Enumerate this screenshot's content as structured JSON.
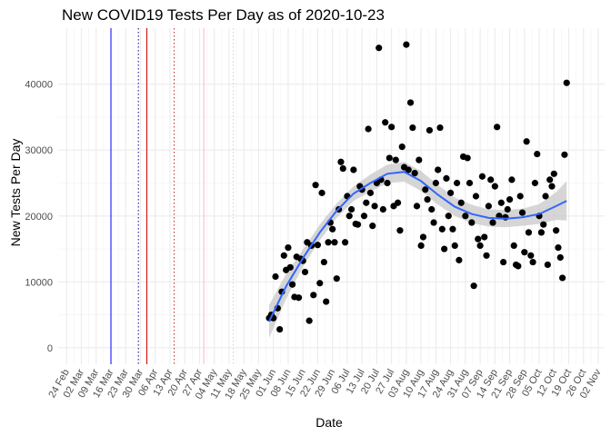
{
  "chart_data": {
    "type": "scatter",
    "title": "New COVID19 Tests Per Day as of 2020-10-23",
    "xlabel": "Date",
    "ylabel": "New Tests Per Day",
    "x_axis_type": "date",
    "xlim": [
      "2020-02-20",
      "2020-11-05"
    ],
    "ylim": [
      -2500,
      48500
    ],
    "y_ticks": [
      0,
      10000,
      20000,
      30000,
      40000
    ],
    "y_tick_labels": [
      "0",
      "10000",
      "20000",
      "30000",
      "40000"
    ],
    "x_ticks": [
      "2020-02-24",
      "2020-03-02",
      "2020-03-09",
      "2020-03-16",
      "2020-03-23",
      "2020-03-30",
      "2020-04-06",
      "2020-04-13",
      "2020-04-20",
      "2020-04-27",
      "2020-05-04",
      "2020-05-11",
      "2020-05-18",
      "2020-05-25",
      "2020-06-01",
      "2020-06-08",
      "2020-06-15",
      "2020-06-22",
      "2020-06-29",
      "2020-07-06",
      "2020-07-13",
      "2020-07-20",
      "2020-07-27",
      "2020-08-03",
      "2020-08-10",
      "2020-08-17",
      "2020-08-24",
      "2020-08-31",
      "2020-09-07",
      "2020-09-14",
      "2020-09-21",
      "2020-09-28",
      "2020-10-05",
      "2020-10-12",
      "2020-10-19",
      "2020-10-26",
      "2020-11-02"
    ],
    "x_tick_labels": [
      "24 Feb",
      "02 Mar",
      "09 Mar",
      "16 Mar",
      "23 Mar",
      "30 Mar",
      "06 Apr",
      "13 Apr",
      "20 Apr",
      "27 Apr",
      "04 May",
      "11 May",
      "18 May",
      "25 May",
      "01 Jun",
      "08 Jun",
      "15 Jun",
      "22 Jun",
      "29 Jun",
      "06 Jul",
      "13 Jul",
      "20 Jul",
      "27 Jul",
      "03 Aug",
      "10 Aug",
      "17 Aug",
      "24 Aug",
      "31 Aug",
      "07 Sep",
      "14 Sep",
      "21 Sep",
      "28 Sep",
      "05 Oct",
      "12 Oct",
      "19 Oct",
      "26 Oct",
      "02 Nov"
    ],
    "grid": true,
    "legend": "none",
    "vlines": [
      {
        "date": "2020-03-16",
        "color": "#0000ff",
        "style": "solid"
      },
      {
        "date": "2020-03-29",
        "color": "#00008b",
        "style": "dotted"
      },
      {
        "date": "2020-04-02",
        "color": "#cc0000",
        "style": "solid"
      },
      {
        "date": "2020-04-15",
        "color": "#b22222",
        "style": "dotted"
      },
      {
        "date": "2020-04-29",
        "color": "#ffb6c1",
        "style": "solid"
      },
      {
        "date": "2020-05-13",
        "color": "#ffb6c1",
        "style": "dotted"
      }
    ],
    "points": [
      {
        "x": "2020-05-30",
        "y": 4500
      },
      {
        "x": "2020-05-31",
        "y": 5000
      },
      {
        "x": "2020-06-01",
        "y": 4500
      },
      {
        "x": "2020-06-02",
        "y": 10800
      },
      {
        "x": "2020-06-03",
        "y": 6000
      },
      {
        "x": "2020-06-04",
        "y": 2800
      },
      {
        "x": "2020-06-05",
        "y": 8500
      },
      {
        "x": "2020-06-06",
        "y": 14000
      },
      {
        "x": "2020-06-07",
        "y": 11800
      },
      {
        "x": "2020-06-08",
        "y": 15200
      },
      {
        "x": "2020-06-09",
        "y": 12200
      },
      {
        "x": "2020-06-10",
        "y": 9600
      },
      {
        "x": "2020-06-11",
        "y": 7700
      },
      {
        "x": "2020-06-12",
        "y": 13800
      },
      {
        "x": "2020-06-13",
        "y": 7600
      },
      {
        "x": "2020-06-14",
        "y": 13500
      },
      {
        "x": "2020-06-15",
        "y": 13200
      },
      {
        "x": "2020-06-16",
        "y": 11500
      },
      {
        "x": "2020-06-17",
        "y": 16000
      },
      {
        "x": "2020-06-18",
        "y": 4100
      },
      {
        "x": "2020-06-19",
        "y": 15500
      },
      {
        "x": "2020-06-20",
        "y": 8000
      },
      {
        "x": "2020-06-21",
        "y": 24700
      },
      {
        "x": "2020-06-22",
        "y": 15600
      },
      {
        "x": "2020-06-23",
        "y": 9800
      },
      {
        "x": "2020-06-24",
        "y": 23500
      },
      {
        "x": "2020-06-25",
        "y": 13000
      },
      {
        "x": "2020-06-26",
        "y": 7000
      },
      {
        "x": "2020-06-27",
        "y": 16000
      },
      {
        "x": "2020-06-28",
        "y": 19000
      },
      {
        "x": "2020-06-29",
        "y": 18000
      },
      {
        "x": "2020-06-30",
        "y": 16000
      },
      {
        "x": "2020-07-01",
        "y": 10500
      },
      {
        "x": "2020-07-02",
        "y": 21000
      },
      {
        "x": "2020-07-03",
        "y": 28200
      },
      {
        "x": "2020-07-04",
        "y": 27200
      },
      {
        "x": "2020-07-05",
        "y": 16000
      },
      {
        "x": "2020-07-06",
        "y": 23000
      },
      {
        "x": "2020-07-07",
        "y": 20000
      },
      {
        "x": "2020-07-08",
        "y": 21000
      },
      {
        "x": "2020-07-09",
        "y": 27000
      },
      {
        "x": "2020-07-10",
        "y": 18800
      },
      {
        "x": "2020-07-11",
        "y": 18700
      },
      {
        "x": "2020-07-12",
        "y": 24500
      },
      {
        "x": "2020-07-13",
        "y": 24000
      },
      {
        "x": "2020-07-14",
        "y": 20000
      },
      {
        "x": "2020-07-15",
        "y": 22000
      },
      {
        "x": "2020-07-16",
        "y": 33200
      },
      {
        "x": "2020-07-17",
        "y": 23500
      },
      {
        "x": "2020-07-18",
        "y": 18500
      },
      {
        "x": "2020-07-19",
        "y": 21500
      },
      {
        "x": "2020-07-20",
        "y": 25000
      },
      {
        "x": "2020-07-21",
        "y": 45500
      },
      {
        "x": "2020-07-22",
        "y": 25500
      },
      {
        "x": "2020-07-23",
        "y": 21000
      },
      {
        "x": "2020-07-24",
        "y": 34200
      },
      {
        "x": "2020-07-25",
        "y": 25000
      },
      {
        "x": "2020-07-26",
        "y": 28800
      },
      {
        "x": "2020-07-27",
        "y": 33500
      },
      {
        "x": "2020-07-28",
        "y": 21500
      },
      {
        "x": "2020-07-29",
        "y": 28500
      },
      {
        "x": "2020-07-30",
        "y": 22000
      },
      {
        "x": "2020-07-31",
        "y": 17800
      },
      {
        "x": "2020-08-01",
        "y": 30500
      },
      {
        "x": "2020-08-02",
        "y": 27400
      },
      {
        "x": "2020-08-03",
        "y": 46000
      },
      {
        "x": "2020-08-04",
        "y": 27000
      },
      {
        "x": "2020-08-05",
        "y": 37200
      },
      {
        "x": "2020-08-06",
        "y": 33400
      },
      {
        "x": "2020-08-07",
        "y": 26500
      },
      {
        "x": "2020-08-08",
        "y": 21500
      },
      {
        "x": "2020-08-09",
        "y": 28500
      },
      {
        "x": "2020-08-10",
        "y": 15500
      },
      {
        "x": "2020-08-11",
        "y": 16800
      },
      {
        "x": "2020-08-12",
        "y": 24000
      },
      {
        "x": "2020-08-13",
        "y": 22500
      },
      {
        "x": "2020-08-14",
        "y": 33000
      },
      {
        "x": "2020-08-15",
        "y": 21000
      },
      {
        "x": "2020-08-16",
        "y": 19000
      },
      {
        "x": "2020-08-17",
        "y": 25000
      },
      {
        "x": "2020-08-18",
        "y": 27000
      },
      {
        "x": "2020-08-19",
        "y": 33400
      },
      {
        "x": "2020-08-20",
        "y": 18000
      },
      {
        "x": "2020-08-21",
        "y": 15000
      },
      {
        "x": "2020-08-22",
        "y": 25700
      },
      {
        "x": "2020-08-23",
        "y": 20000
      },
      {
        "x": "2020-08-24",
        "y": 23500
      },
      {
        "x": "2020-08-25",
        "y": 18000
      },
      {
        "x": "2020-08-26",
        "y": 15500
      },
      {
        "x": "2020-08-27",
        "y": 25000
      },
      {
        "x": "2020-08-28",
        "y": 13300
      },
      {
        "x": "2020-08-29",
        "y": 22000
      },
      {
        "x": "2020-08-30",
        "y": 29000
      },
      {
        "x": "2020-08-31",
        "y": 20000
      },
      {
        "x": "2020-09-01",
        "y": 28800
      },
      {
        "x": "2020-09-02",
        "y": 25000
      },
      {
        "x": "2020-09-03",
        "y": 19000
      },
      {
        "x": "2020-09-04",
        "y": 9400
      },
      {
        "x": "2020-09-05",
        "y": 23000
      },
      {
        "x": "2020-09-06",
        "y": 16500
      },
      {
        "x": "2020-09-07",
        "y": 15500
      },
      {
        "x": "2020-09-08",
        "y": 26000
      },
      {
        "x": "2020-09-09",
        "y": 16800
      },
      {
        "x": "2020-09-10",
        "y": 14000
      },
      {
        "x": "2020-09-11",
        "y": 21500
      },
      {
        "x": "2020-09-12",
        "y": 25500
      },
      {
        "x": "2020-09-13",
        "y": 19000
      },
      {
        "x": "2020-09-14",
        "y": 24500
      },
      {
        "x": "2020-09-15",
        "y": 33500
      },
      {
        "x": "2020-09-16",
        "y": 20000
      },
      {
        "x": "2020-09-17",
        "y": 22000
      },
      {
        "x": "2020-09-18",
        "y": 13000
      },
      {
        "x": "2020-09-19",
        "y": 19800
      },
      {
        "x": "2020-09-20",
        "y": 21000
      },
      {
        "x": "2020-09-21",
        "y": 22500
      },
      {
        "x": "2020-09-22",
        "y": 25500
      },
      {
        "x": "2020-09-23",
        "y": 15500
      },
      {
        "x": "2020-09-24",
        "y": 12600
      },
      {
        "x": "2020-09-25",
        "y": 12400
      },
      {
        "x": "2020-09-26",
        "y": 23000
      },
      {
        "x": "2020-09-27",
        "y": 20500
      },
      {
        "x": "2020-09-28",
        "y": 14500
      },
      {
        "x": "2020-09-29",
        "y": 31300
      },
      {
        "x": "2020-09-30",
        "y": 17500
      },
      {
        "x": "2020-10-01",
        "y": 14000
      },
      {
        "x": "2020-10-02",
        "y": 13000
      },
      {
        "x": "2020-10-03",
        "y": 25000
      },
      {
        "x": "2020-10-04",
        "y": 29400
      },
      {
        "x": "2020-10-05",
        "y": 20000
      },
      {
        "x": "2020-10-06",
        "y": 17500
      },
      {
        "x": "2020-10-07",
        "y": 18700
      },
      {
        "x": "2020-10-08",
        "y": 23000
      },
      {
        "x": "2020-10-09",
        "y": 12600
      },
      {
        "x": "2020-10-10",
        "y": 25500
      },
      {
        "x": "2020-10-11",
        "y": 24500
      },
      {
        "x": "2020-10-12",
        "y": 26400
      },
      {
        "x": "2020-10-13",
        "y": 17800
      },
      {
        "x": "2020-10-14",
        "y": 15200
      },
      {
        "x": "2020-10-15",
        "y": 13700
      },
      {
        "x": "2020-10-16",
        "y": 10600
      },
      {
        "x": "2020-10-17",
        "y": 29300
      },
      {
        "x": "2020-10-18",
        "y": 40200
      }
    ],
    "smooth": {
      "color": "#3366ff",
      "band_color": "#c8c8c8",
      "x": [
        "2020-05-30",
        "2020-06-07",
        "2020-06-15",
        "2020-06-23",
        "2020-07-01",
        "2020-07-09",
        "2020-07-17",
        "2020-07-25",
        "2020-08-02",
        "2020-08-10",
        "2020-08-18",
        "2020-08-26",
        "2020-09-03",
        "2020-09-11",
        "2020-09-19",
        "2020-09-27",
        "2020-10-05",
        "2020-10-13",
        "2020-10-18"
      ],
      "y": [
        4000,
        9300,
        13600,
        17500,
        20800,
        23400,
        25000,
        26400,
        26700,
        25300,
        23200,
        21400,
        20300,
        19700,
        19600,
        19800,
        20300,
        21500,
        22300
      ],
      "lower": [
        1500,
        7400,
        12300,
        16300,
        19700,
        22300,
        23700,
        25000,
        25200,
        23800,
        21700,
        20000,
        18900,
        18400,
        18300,
        18500,
        18800,
        19400,
        19300
      ],
      "upper": [
        6500,
        11200,
        14900,
        18700,
        21900,
        24500,
        26300,
        27800,
        28200,
        26800,
        24700,
        22800,
        21700,
        21000,
        20900,
        21100,
        21800,
        23600,
        25300
      ]
    }
  }
}
